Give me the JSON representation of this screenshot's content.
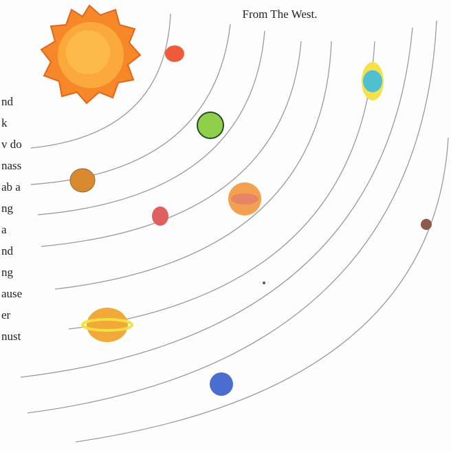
{
  "caption": "From The West.",
  "side_text": [
    "nd",
    "k",
    "v do",
    "nass",
    "ab a",
    "ng",
    "a",
    "nd",
    "ng",
    "ause",
    "er",
    "nust"
  ]
}
